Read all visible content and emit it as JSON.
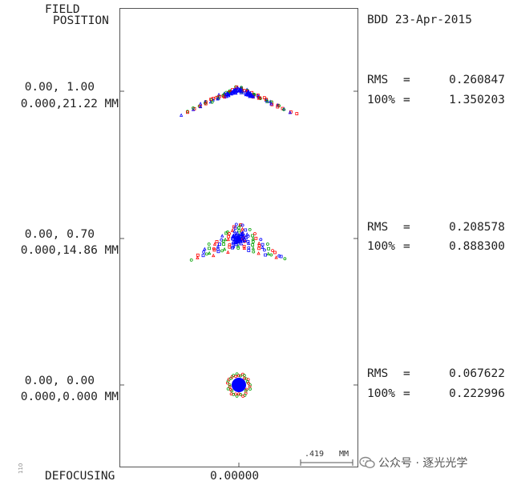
{
  "header": {
    "field_label_1": "FIELD",
    "field_label_2": "POSITION",
    "design_date": "BDD 23-Apr-2015"
  },
  "fields": [
    {
      "field_norm": "0.00, 1.00",
      "field_mm": "0.000,21.22 MM",
      "rms_label": "RMS",
      "rms_eq": "=",
      "rms_value": "0.260847",
      "full_label": "100%",
      "full_eq": "=",
      "full_value": "1.350203"
    },
    {
      "field_norm": "0.00, 0.70",
      "field_mm": "0.000,14.86 MM",
      "rms_label": "RMS",
      "rms_eq": "=",
      "rms_value": "0.208578",
      "full_label": "100%",
      "full_eq": "=",
      "full_value": "0.888300"
    },
    {
      "field_norm": "0.00, 0.00",
      "field_mm": "0.000,0.000 MM",
      "rms_label": "RMS",
      "rms_eq": "=",
      "rms_value": "0.067622",
      "full_label": "100%",
      "full_eq": "=",
      "full_value": "0.222996"
    }
  ],
  "scale": {
    "value": ".419",
    "unit": "MM"
  },
  "footer": {
    "defocusing_label": "DEFOCUSING",
    "defocusing_value": "0.00000"
  },
  "watermark": {
    "text": "公众号 · 逐光光学",
    "icon": "wechat-icon"
  },
  "side_code": "110",
  "colors": {
    "blue": "#0000ff",
    "red": "#ff0000",
    "green": "#00a000",
    "frame": "#555555"
  }
}
